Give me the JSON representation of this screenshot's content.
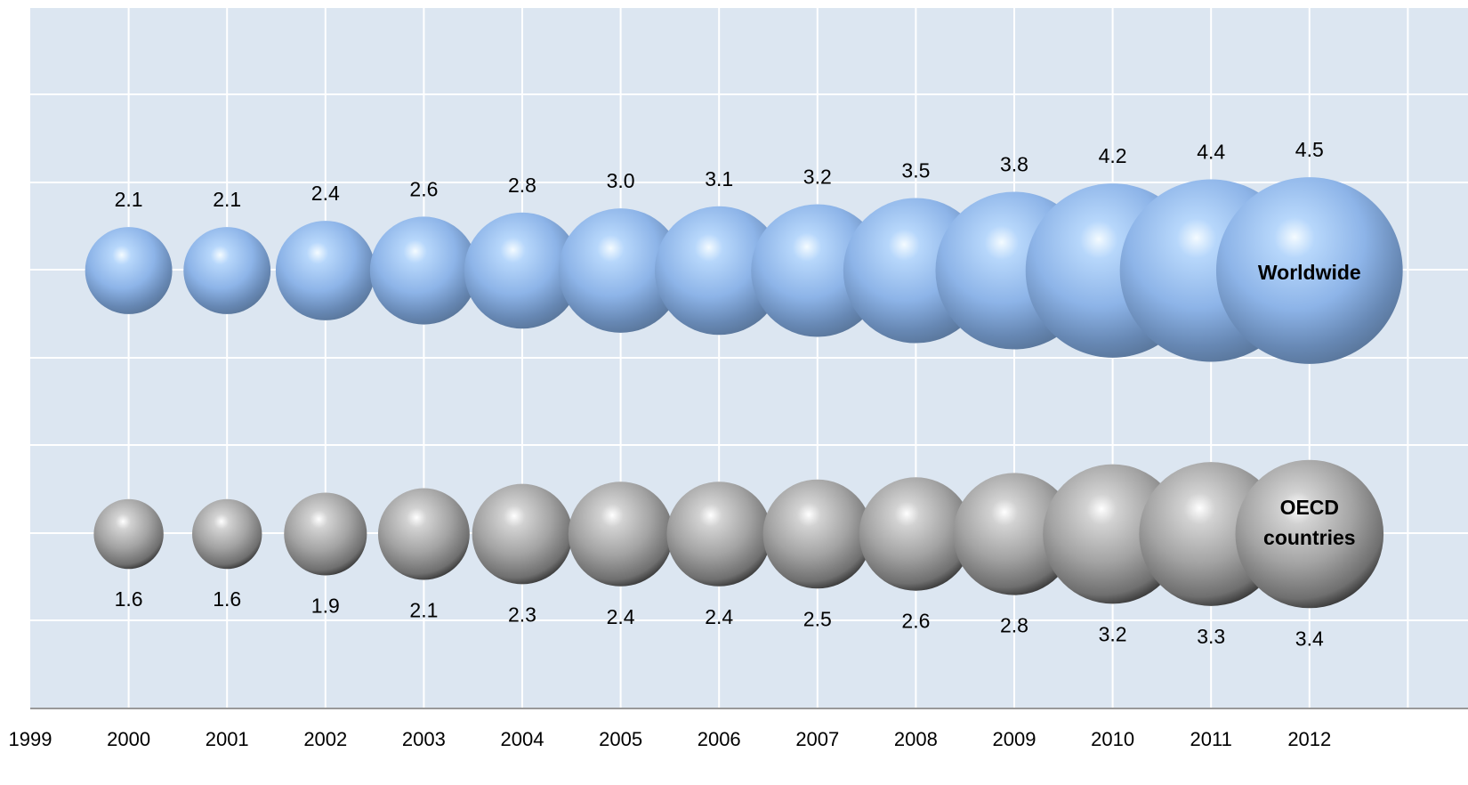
{
  "chart_data": {
    "type": "bubble",
    "x": [
      2000,
      2001,
      2002,
      2003,
      2004,
      2005,
      2006,
      2007,
      2008,
      2009,
      2010,
      2011,
      2012
    ],
    "x_tick_labels": [
      "1999",
      "2000",
      "2001",
      "2002",
      "2003",
      "2004",
      "2005",
      "2006",
      "2007",
      "2008",
      "2009",
      "2010",
      "2011",
      "2012"
    ],
    "xlim": [
      1999,
      2013
    ],
    "grid": true,
    "series": [
      {
        "name": "Worldwide",
        "color": "#8fb3e6",
        "values": [
          2.1,
          2.1,
          2.4,
          2.6,
          2.8,
          3.0,
          3.1,
          3.2,
          3.5,
          3.8,
          4.2,
          4.4,
          4.5
        ],
        "value_labels": [
          "2.1",
          "2.1",
          "2.4",
          "2.6",
          "2.8",
          "3.0",
          "3.1",
          "3.2",
          "3.5",
          "3.8",
          "4.2",
          "4.4",
          "4.5"
        ]
      },
      {
        "name": "OECD countries",
        "color": "#a6a6a6",
        "values": [
          1.6,
          1.6,
          1.9,
          2.1,
          2.3,
          2.4,
          2.4,
          2.5,
          2.6,
          2.8,
          3.2,
          3.3,
          3.4
        ],
        "value_labels": [
          "1.6",
          "1.6",
          "1.9",
          "2.1",
          "2.3",
          "2.4",
          "2.4",
          "2.5",
          "2.6",
          "2.8",
          "3.2",
          "3.3",
          "3.4"
        ]
      }
    ],
    "colors": {
      "plot_background": "#dce6f1",
      "gridline": "#ffffff",
      "axis": "#999999"
    }
  }
}
